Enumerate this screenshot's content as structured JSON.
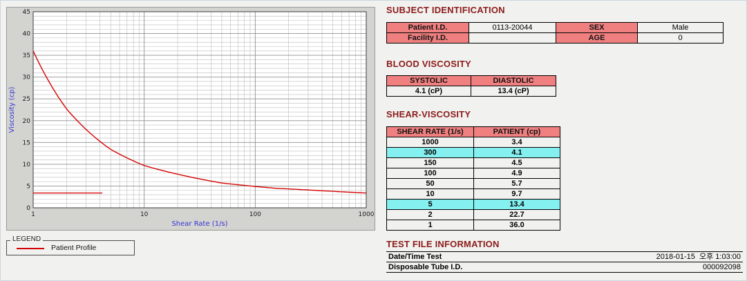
{
  "colors": {
    "heading": "#8b1a1a",
    "table_header_bg": "#f08080",
    "highlight_bg": "#85f0f0",
    "chart_line": "#d40000",
    "axis_label": "#3434d6"
  },
  "legend": {
    "box_label": "LEGEND",
    "series_label": "Patient Profile"
  },
  "subject_identification": {
    "title": "SUBJECT IDENTIFICATION",
    "rows": [
      {
        "label1": "Patient I.D.",
        "value1": "0113-20044",
        "label2": "SEX",
        "value2": "Male"
      },
      {
        "label1": "Facility I.D.",
        "value1": "",
        "label2": "AGE",
        "value2": "0"
      }
    ]
  },
  "blood_viscosity": {
    "title": "BLOOD VISCOSITY",
    "headers": [
      "SYSTOLIC",
      "DIASTOLIC"
    ],
    "values": [
      "4.1 (cP)",
      "13.4 (cP)"
    ]
  },
  "shear_viscosity": {
    "title": "SHEAR-VISCOSITY",
    "headers": [
      "SHEAR RATE (1/s)",
      "PATIENT (cp)"
    ],
    "rows": [
      {
        "shear_rate": "1000",
        "patient": "3.4",
        "highlight": false
      },
      {
        "shear_rate": "300",
        "patient": "4.1",
        "highlight": true
      },
      {
        "shear_rate": "150",
        "patient": "4.5",
        "highlight": false
      },
      {
        "shear_rate": "100",
        "patient": "4.9",
        "highlight": false
      },
      {
        "shear_rate": "50",
        "patient": "5.7",
        "highlight": false
      },
      {
        "shear_rate": "10",
        "patient": "9.7",
        "highlight": false
      },
      {
        "shear_rate": "5",
        "patient": "13.4",
        "highlight": true
      },
      {
        "shear_rate": "2",
        "patient": "22.7",
        "highlight": false
      },
      {
        "shear_rate": "1",
        "patient": "36.0",
        "highlight": false
      }
    ]
  },
  "test_file_information": {
    "title": "TEST FILE INFORMATION",
    "rows": [
      {
        "label": "Date/Time Test",
        "value": "2018-01-15  오후 1:03:00"
      },
      {
        "label": "Disposable Tube I.D.",
        "value": "000092098"
      }
    ]
  },
  "chart_data": {
    "type": "line",
    "title": "",
    "xlabel": "Shear Rate (1/s)",
    "ylabel": "Viscosity (cp)",
    "x_scale": "log",
    "xlim": [
      1,
      1000
    ],
    "ylim": [
      0,
      45
    ],
    "x_ticks": [
      1,
      10,
      100,
      1000
    ],
    "y_ticks": [
      0,
      5,
      10,
      15,
      20,
      25,
      30,
      35,
      40,
      45
    ],
    "grid": "on",
    "legend_position": "below-left",
    "series": [
      {
        "name": "Patient Profile",
        "color": "#d40000",
        "x": [
          1,
          2,
          5,
          10,
          50,
          100,
          150,
          300,
          1000
        ],
        "y": [
          36.0,
          22.7,
          13.4,
          9.7,
          5.7,
          4.9,
          4.5,
          4.1,
          3.4
        ]
      }
    ],
    "annotations": [
      {
        "type": "hline",
        "y": 3.4,
        "x_start": 1,
        "x_end": 4.2,
        "color": "#d40000"
      }
    ]
  }
}
